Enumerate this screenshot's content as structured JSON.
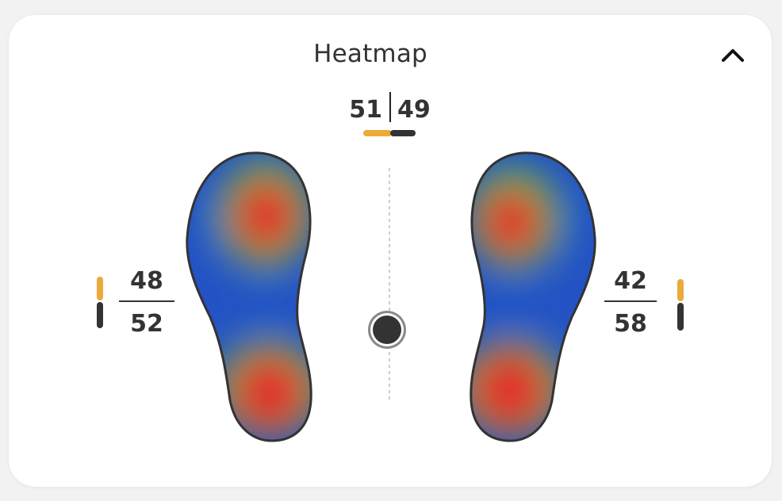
{
  "header": {
    "title": "Heatmap",
    "collapse_icon": "chevron-up-icon"
  },
  "balance": {
    "left_percent": "51",
    "right_percent": "49",
    "left_fraction": 0.51,
    "right_fraction": 0.49
  },
  "left_foot": {
    "front_percent": "48",
    "back_percent": "52",
    "front_fraction": 0.48,
    "back_fraction": 0.52
  },
  "right_foot": {
    "front_percent": "42",
    "back_percent": "58",
    "front_fraction": 0.42,
    "back_fraction": 0.58
  },
  "center_of_pressure_icon": "circle-marker-icon",
  "colors": {
    "accent_orange": "#ebab3a",
    "dark": "#333333",
    "heat_high": "#e0302a",
    "heat_mid": "#2e9a58",
    "heat_low": "#2452c4"
  }
}
